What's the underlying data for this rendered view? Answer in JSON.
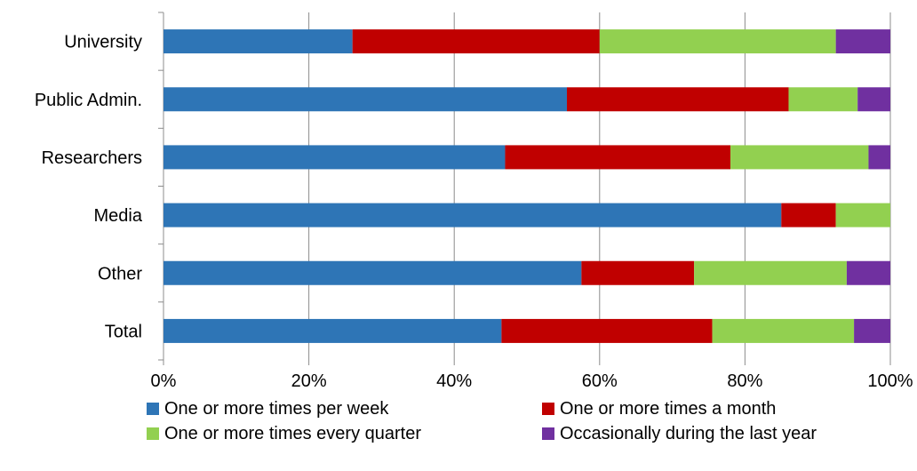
{
  "chart_data": {
    "type": "bar",
    "orientation": "horizontal",
    "stacked": "percent",
    "title": "",
    "xlabel": "",
    "ylabel": "",
    "xlim": [
      0,
      100
    ],
    "grid": "vertical major gridlines",
    "legend_position": "bottom",
    "categories": [
      "University",
      "Public Admin.",
      "Researchers",
      "Media",
      "Other",
      "Total"
    ],
    "x_ticks": [
      "0%",
      "20%",
      "40%",
      "60%",
      "80%",
      "100%"
    ],
    "series": [
      {
        "name": "One or more times per week",
        "color": "#2E75B6",
        "values": [
          26,
          55.5,
          47,
          85,
          57.5,
          46.5
        ]
      },
      {
        "name": "One or more times a month",
        "color": "#C00000",
        "values": [
          34,
          30.5,
          31,
          7.5,
          15.5,
          29
        ]
      },
      {
        "name": "One or more times every quarter",
        "color": "#92D050",
        "values": [
          32.5,
          9.5,
          19,
          7.5,
          21,
          19.5
        ]
      },
      {
        "name": "Occasionally during the last year",
        "color": "#7030A0",
        "values": [
          7.5,
          4.5,
          3,
          0,
          6,
          5
        ]
      }
    ]
  }
}
